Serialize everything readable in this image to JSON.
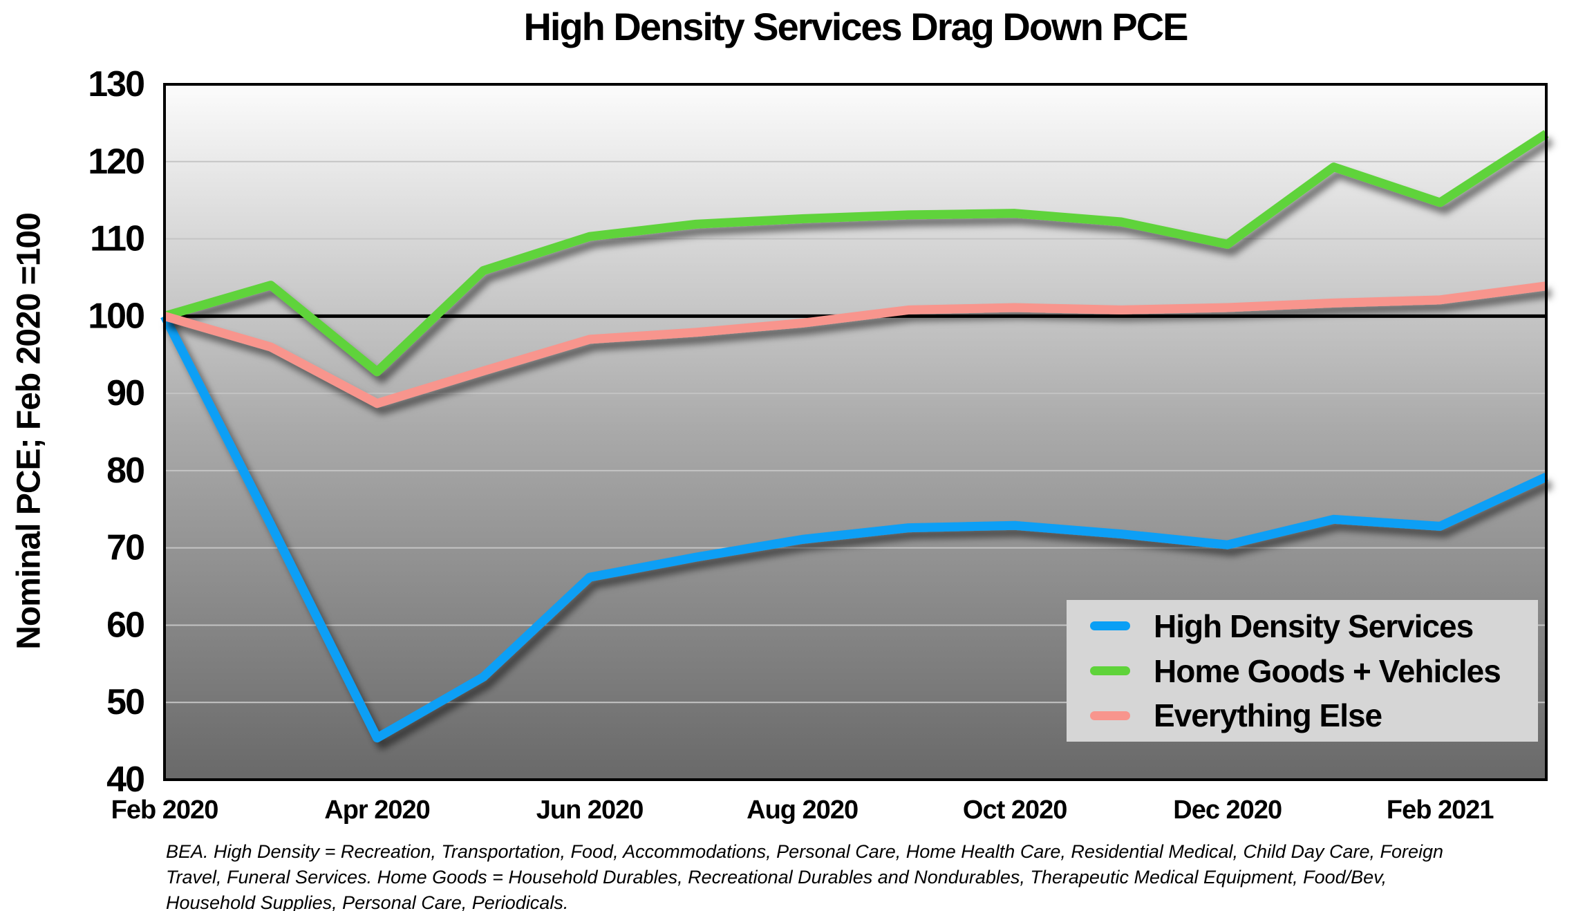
{
  "chart_data": {
    "type": "line",
    "title": "High Density Services Drag Down PCE",
    "ylabel": "Nominal PCE; Feb 2020 =100",
    "ylim": [
      40,
      130
    ],
    "y_tick_step": 10,
    "reference_line": 100,
    "grid": true,
    "legend_position": "bottom-right",
    "x": [
      "Feb 2020",
      "Mar 2020",
      "Apr 2020",
      "May 2020",
      "Jun 2020",
      "Jul 2020",
      "Aug 2020",
      "Sep 2020",
      "Oct 2020",
      "Nov 2020",
      "Dec 2020",
      "Jan 2021",
      "Feb 2021",
      "Mar 2021"
    ],
    "x_tick_labels": [
      "Feb 2020",
      "Apr 2020",
      "Jun 2020",
      "Aug 2020",
      "Oct 2020",
      "Dec 2020",
      "Feb 2021"
    ],
    "series": [
      {
        "name": "High Density Services",
        "color": "#0A9FF5",
        "values": [
          100,
          73,
          45.4,
          53.3,
          66.2,
          68.8,
          71.1,
          72.6,
          72.9,
          71.8,
          70.4,
          73.7,
          72.8,
          79.2
        ]
      },
      {
        "name": "Home Goods + Vehicles",
        "color": "#5FD33A",
        "values": [
          100,
          104,
          92.8,
          105.9,
          110.3,
          111.9,
          112.6,
          113.1,
          113.3,
          112.2,
          109.3,
          119.3,
          114.7,
          123.6
        ]
      },
      {
        "name": "Everything Else",
        "color": "#F8958D",
        "values": [
          100,
          96,
          88.7,
          92.9,
          97,
          97.9,
          99.1,
          100.8,
          101.1,
          100.8,
          101.1,
          101.7,
          102.1,
          103.9
        ]
      }
    ],
    "colors": {
      "gridline": "#C4C4C4",
      "reference_line": "#000000",
      "frame": "#000000",
      "legend_background": "#D6D6D6",
      "plot_gradient_top": "#FCFCFC",
      "plot_gradient_mid": "#A9A9A9",
      "plot_gradient_bottom": "#696969"
    }
  },
  "footnote": {
    "line1": "BEA. High Density = Recreation, Transportation, Food, Accommodations, Personal Care, Home Health Care, Residential Medical, Child Day Care, Foreign",
    "line2": "Travel, Funeral Services. Home Goods = Household Durables, Recreational Durables and Nondurables, Therapeutic Medical Equipment, Food/Bev,",
    "line3": "Household Supplies, Personal Care, Periodicals."
  }
}
